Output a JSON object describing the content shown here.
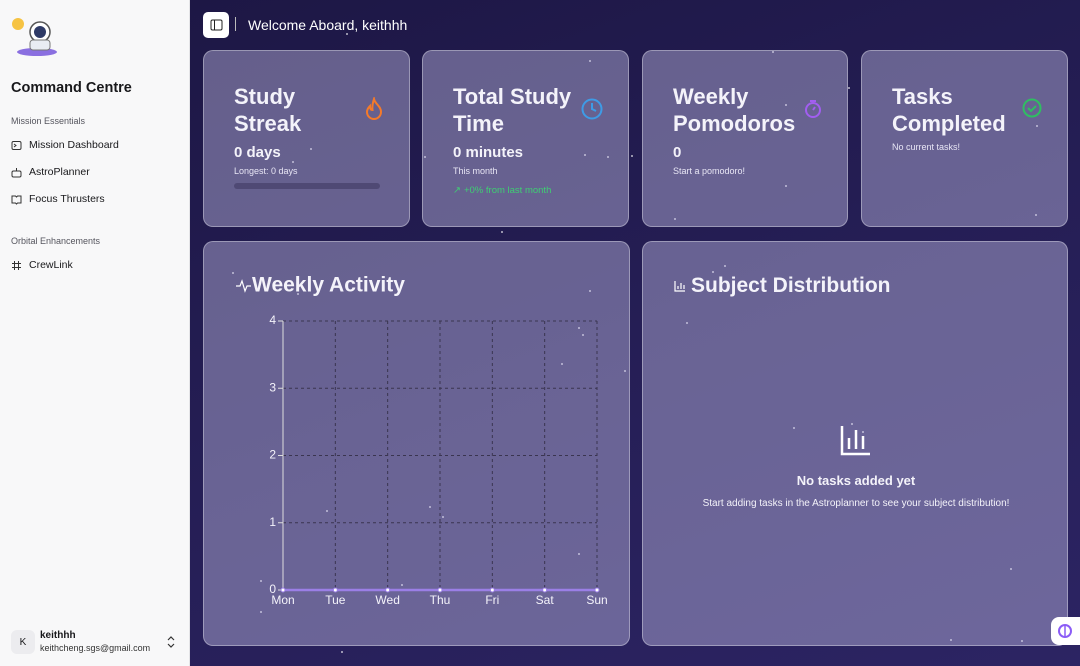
{
  "sidebar": {
    "title": "Command Centre",
    "sections": [
      {
        "heading": "Mission Essentials",
        "items": [
          "Mission Dashboard",
          "AstroPlanner",
          "Focus Thrusters"
        ]
      },
      {
        "heading": "Orbital Enhancements",
        "items": [
          "CrewLink"
        ]
      }
    ],
    "user": {
      "avatar": "K",
      "name": "keithhh",
      "email": "keithcheng.sgs@gmail.com"
    }
  },
  "header": {
    "welcome": "Welcome Aboard, keithhh"
  },
  "stats": [
    {
      "title": "Study Streak",
      "value": "0 days",
      "note": "Longest: 0 days"
    },
    {
      "title": "Total Study Time",
      "value": "0 minutes",
      "note": "This month",
      "trend": "+0% from last month"
    },
    {
      "title": "Weekly Pomodoros",
      "value": "0",
      "note": "Start a pomodoro!"
    },
    {
      "title": "Tasks Completed",
      "note": "No current tasks!"
    }
  ],
  "chart_data": {
    "type": "line",
    "title": "Weekly Activity",
    "categories": [
      "Mon",
      "Tue",
      "Wed",
      "Thu",
      "Fri",
      "Sat",
      "Sun"
    ],
    "series": [
      {
        "color": "#9b7fe6",
        "values": [
          0,
          0,
          0,
          0,
          0,
          0,
          0
        ]
      }
    ],
    "ylim": [
      0,
      4
    ],
    "yticks": [
      0,
      1,
      2,
      3,
      4
    ],
    "grid": true
  },
  "subject_distribution": {
    "title": "Subject Distribution",
    "empty_title": "No tasks added yet",
    "empty_text": "Start adding tasks in the Astroplanner to see your subject distribution!"
  }
}
